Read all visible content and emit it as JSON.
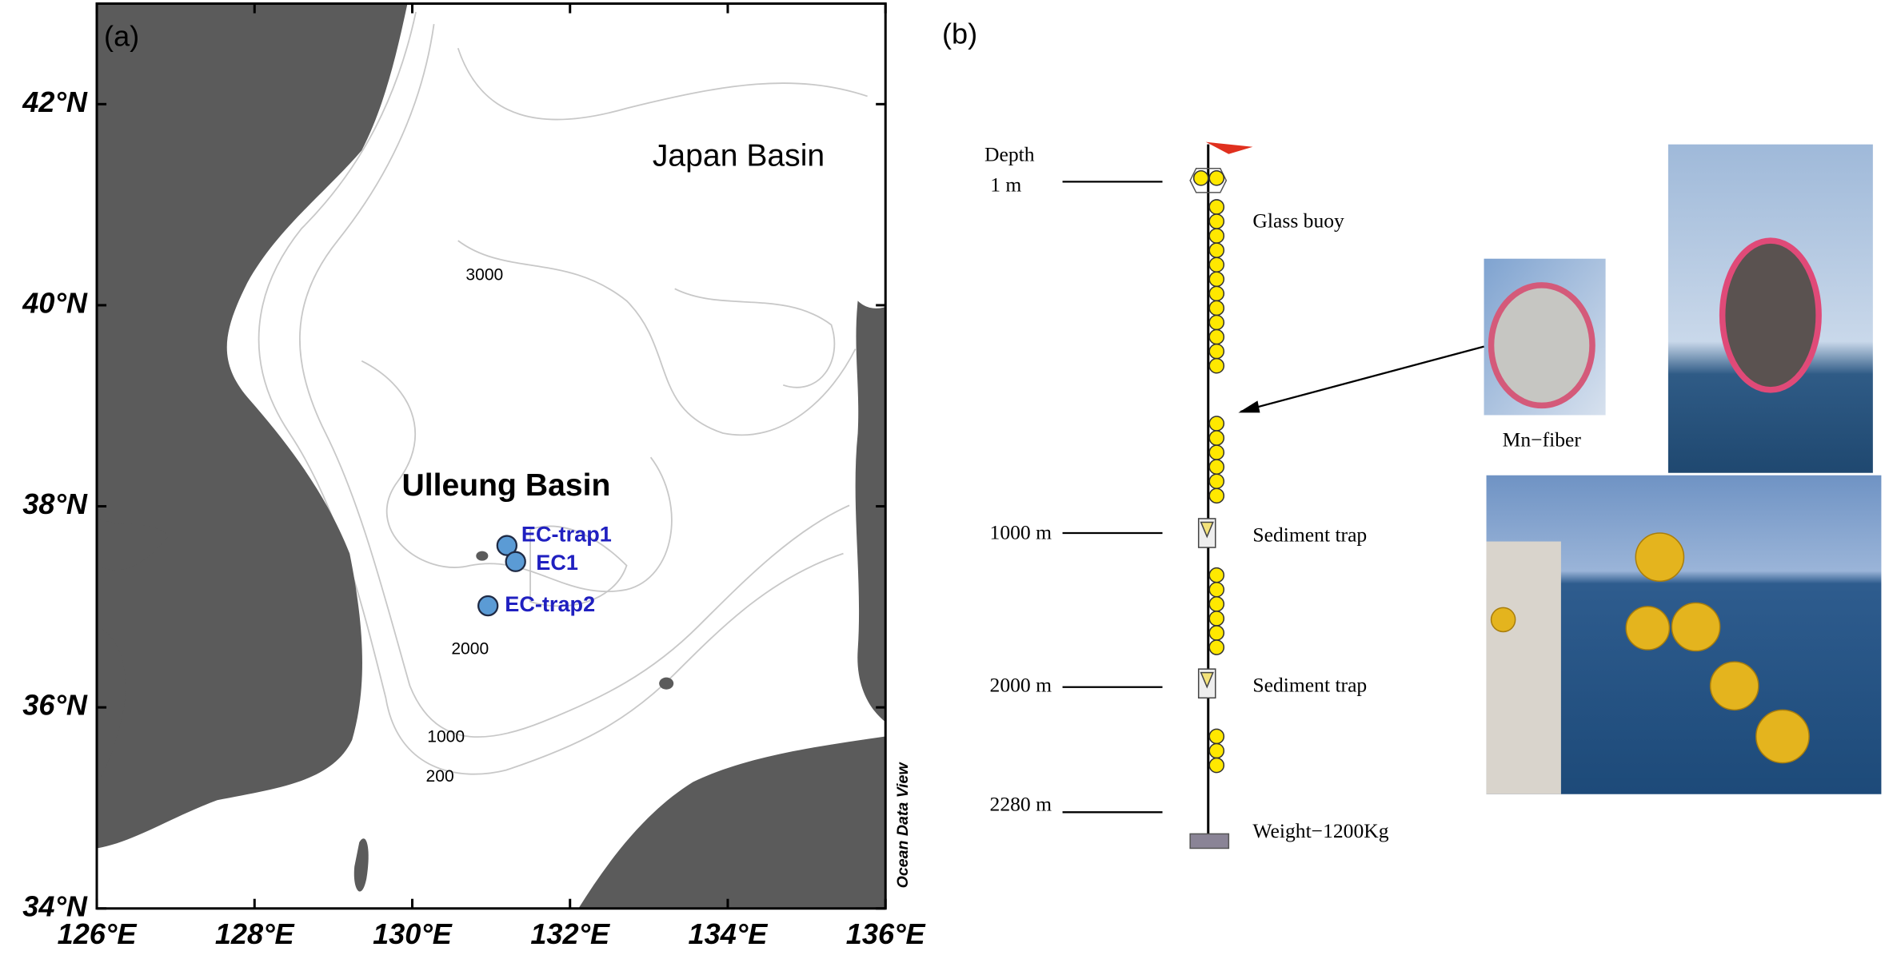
{
  "panel_a": {
    "label": "(a)",
    "xlim": [
      126,
      136
    ],
    "ylim": [
      34,
      43
    ],
    "lon_ticks": [
      {
        "value": 126,
        "label": "126°E"
      },
      {
        "value": 128,
        "label": "128°E"
      },
      {
        "value": 130,
        "label": "130°E"
      },
      {
        "value": 132,
        "label": "132°E"
      },
      {
        "value": 134,
        "label": "134°E"
      },
      {
        "value": 136,
        "label": "136°E"
      }
    ],
    "lat_ticks": [
      {
        "value": 34,
        "label": "34°N"
      },
      {
        "value": 36,
        "label": "36°N"
      },
      {
        "value": 38,
        "label": "38°N"
      },
      {
        "value": 40,
        "label": "40°N"
      },
      {
        "value": 42,
        "label": "42°N"
      }
    ],
    "region_labels": [
      "Japan Basin",
      "Ulleung Basin"
    ],
    "contour_labels": [
      "3000",
      "2000",
      "1000",
      "200"
    ],
    "stations": [
      {
        "name": "EC-trap1",
        "lon": 131.2,
        "lat": 37.61
      },
      {
        "name": "EC1",
        "lon": 131.31,
        "lat": 37.45
      },
      {
        "name": "EC-trap2",
        "lon": 130.96,
        "lat": 37.01
      }
    ],
    "credit": "Ocean Data View"
  },
  "panel_b": {
    "label": "(b)",
    "depth_header": "Depth",
    "depths": [
      "1 m",
      "1000 m",
      "2000 m",
      "2280 m"
    ],
    "components": [
      "Glass buoy",
      "Sediment trap",
      "Sediment trap",
      "Weight−1200Kg"
    ],
    "photo_caption": "Mn−fiber"
  }
}
